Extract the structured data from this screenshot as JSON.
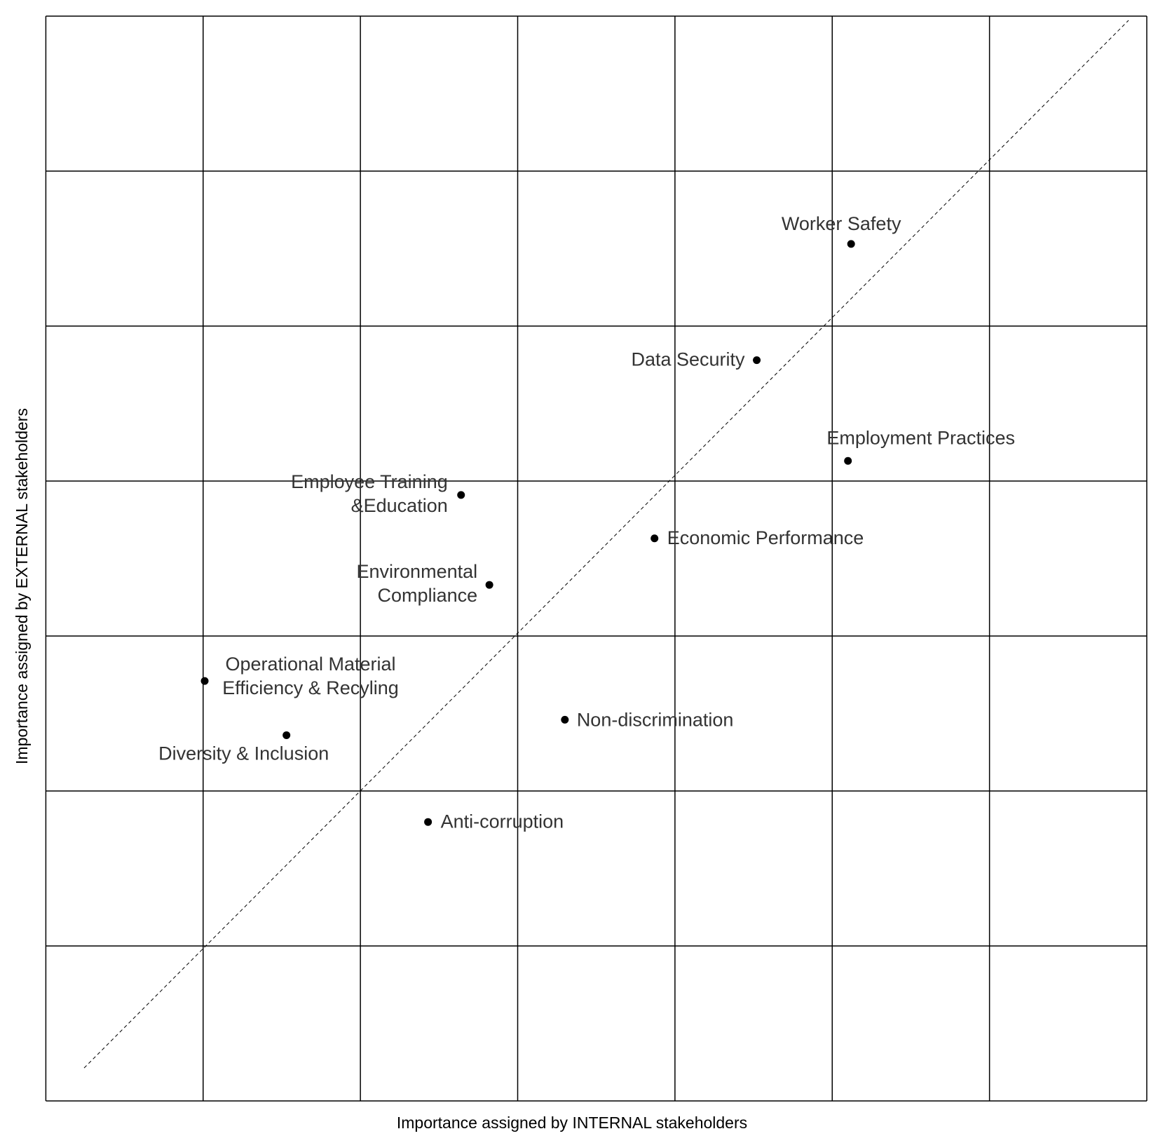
{
  "chart_data": {
    "type": "scatter",
    "x_label": "Importance assigned by INTERNAL stakeholders",
    "y_label": "Importance assigned by EXTERNAL stakeholders",
    "labels": [
      [
        "Worker Safety"
      ],
      [
        "Data Security"
      ],
      [
        "Employment Practices"
      ],
      [
        "Employee Training",
        "&Education"
      ],
      [
        "Economic Performance"
      ],
      [
        "Environmental",
        "Compliance"
      ],
      [
        "Operational Material",
        "Efficiency & Recyling"
      ],
      [
        "Diversity & Inclusion"
      ],
      [
        "Non-discrimination"
      ],
      [
        "Anti-corruption"
      ]
    ],
    "x": [
      5.12,
      4.52,
      5.1,
      2.64,
      3.87,
      2.82,
      1.01,
      1.53,
      3.3,
      2.43
    ],
    "y": [
      5.53,
      4.78,
      4.13,
      3.91,
      3.63,
      3.33,
      2.71,
      2.36,
      2.46,
      1.8
    ],
    "color": "#000000",
    "xlim": [
      0,
      7
    ],
    "ylim": [
      0,
      7
    ],
    "xticks": [
      0,
      1,
      2,
      3,
      4,
      5,
      6,
      7
    ],
    "yticks": [
      0,
      1,
      2,
      3,
      4,
      5,
      6,
      7
    ],
    "grid": true
  }
}
